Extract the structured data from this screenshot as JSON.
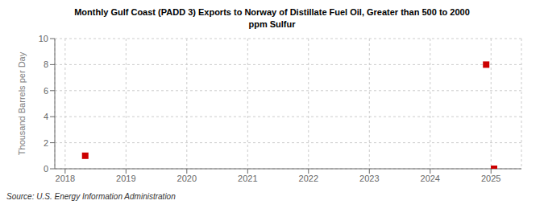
{
  "chart_data": {
    "type": "scatter",
    "title": "Monthly Gulf Coast (PADD 3) Exports to Norway of Distillate Fuel Oil, Greater than 500 to 2000\nppm Sulfur",
    "ylabel": "Thousand Barrels per Day",
    "annotations": [
      "Source: U.S. Energy Information Administration"
    ],
    "x": [
      2018.33,
      2024.92,
      2025.05
    ],
    "values": [
      1.0,
      8.0,
      0.0
    ],
    "color": "#cc0000",
    "marker": "square",
    "xlim": [
      2017.83,
      2025.5
    ],
    "ylim": [
      0,
      10
    ],
    "xticks": [
      2018,
      2019,
      2020,
      2021,
      2022,
      2023,
      2024,
      2025
    ],
    "yticks": [
      0,
      2,
      4,
      6,
      8,
      10
    ],
    "grid": true
  }
}
